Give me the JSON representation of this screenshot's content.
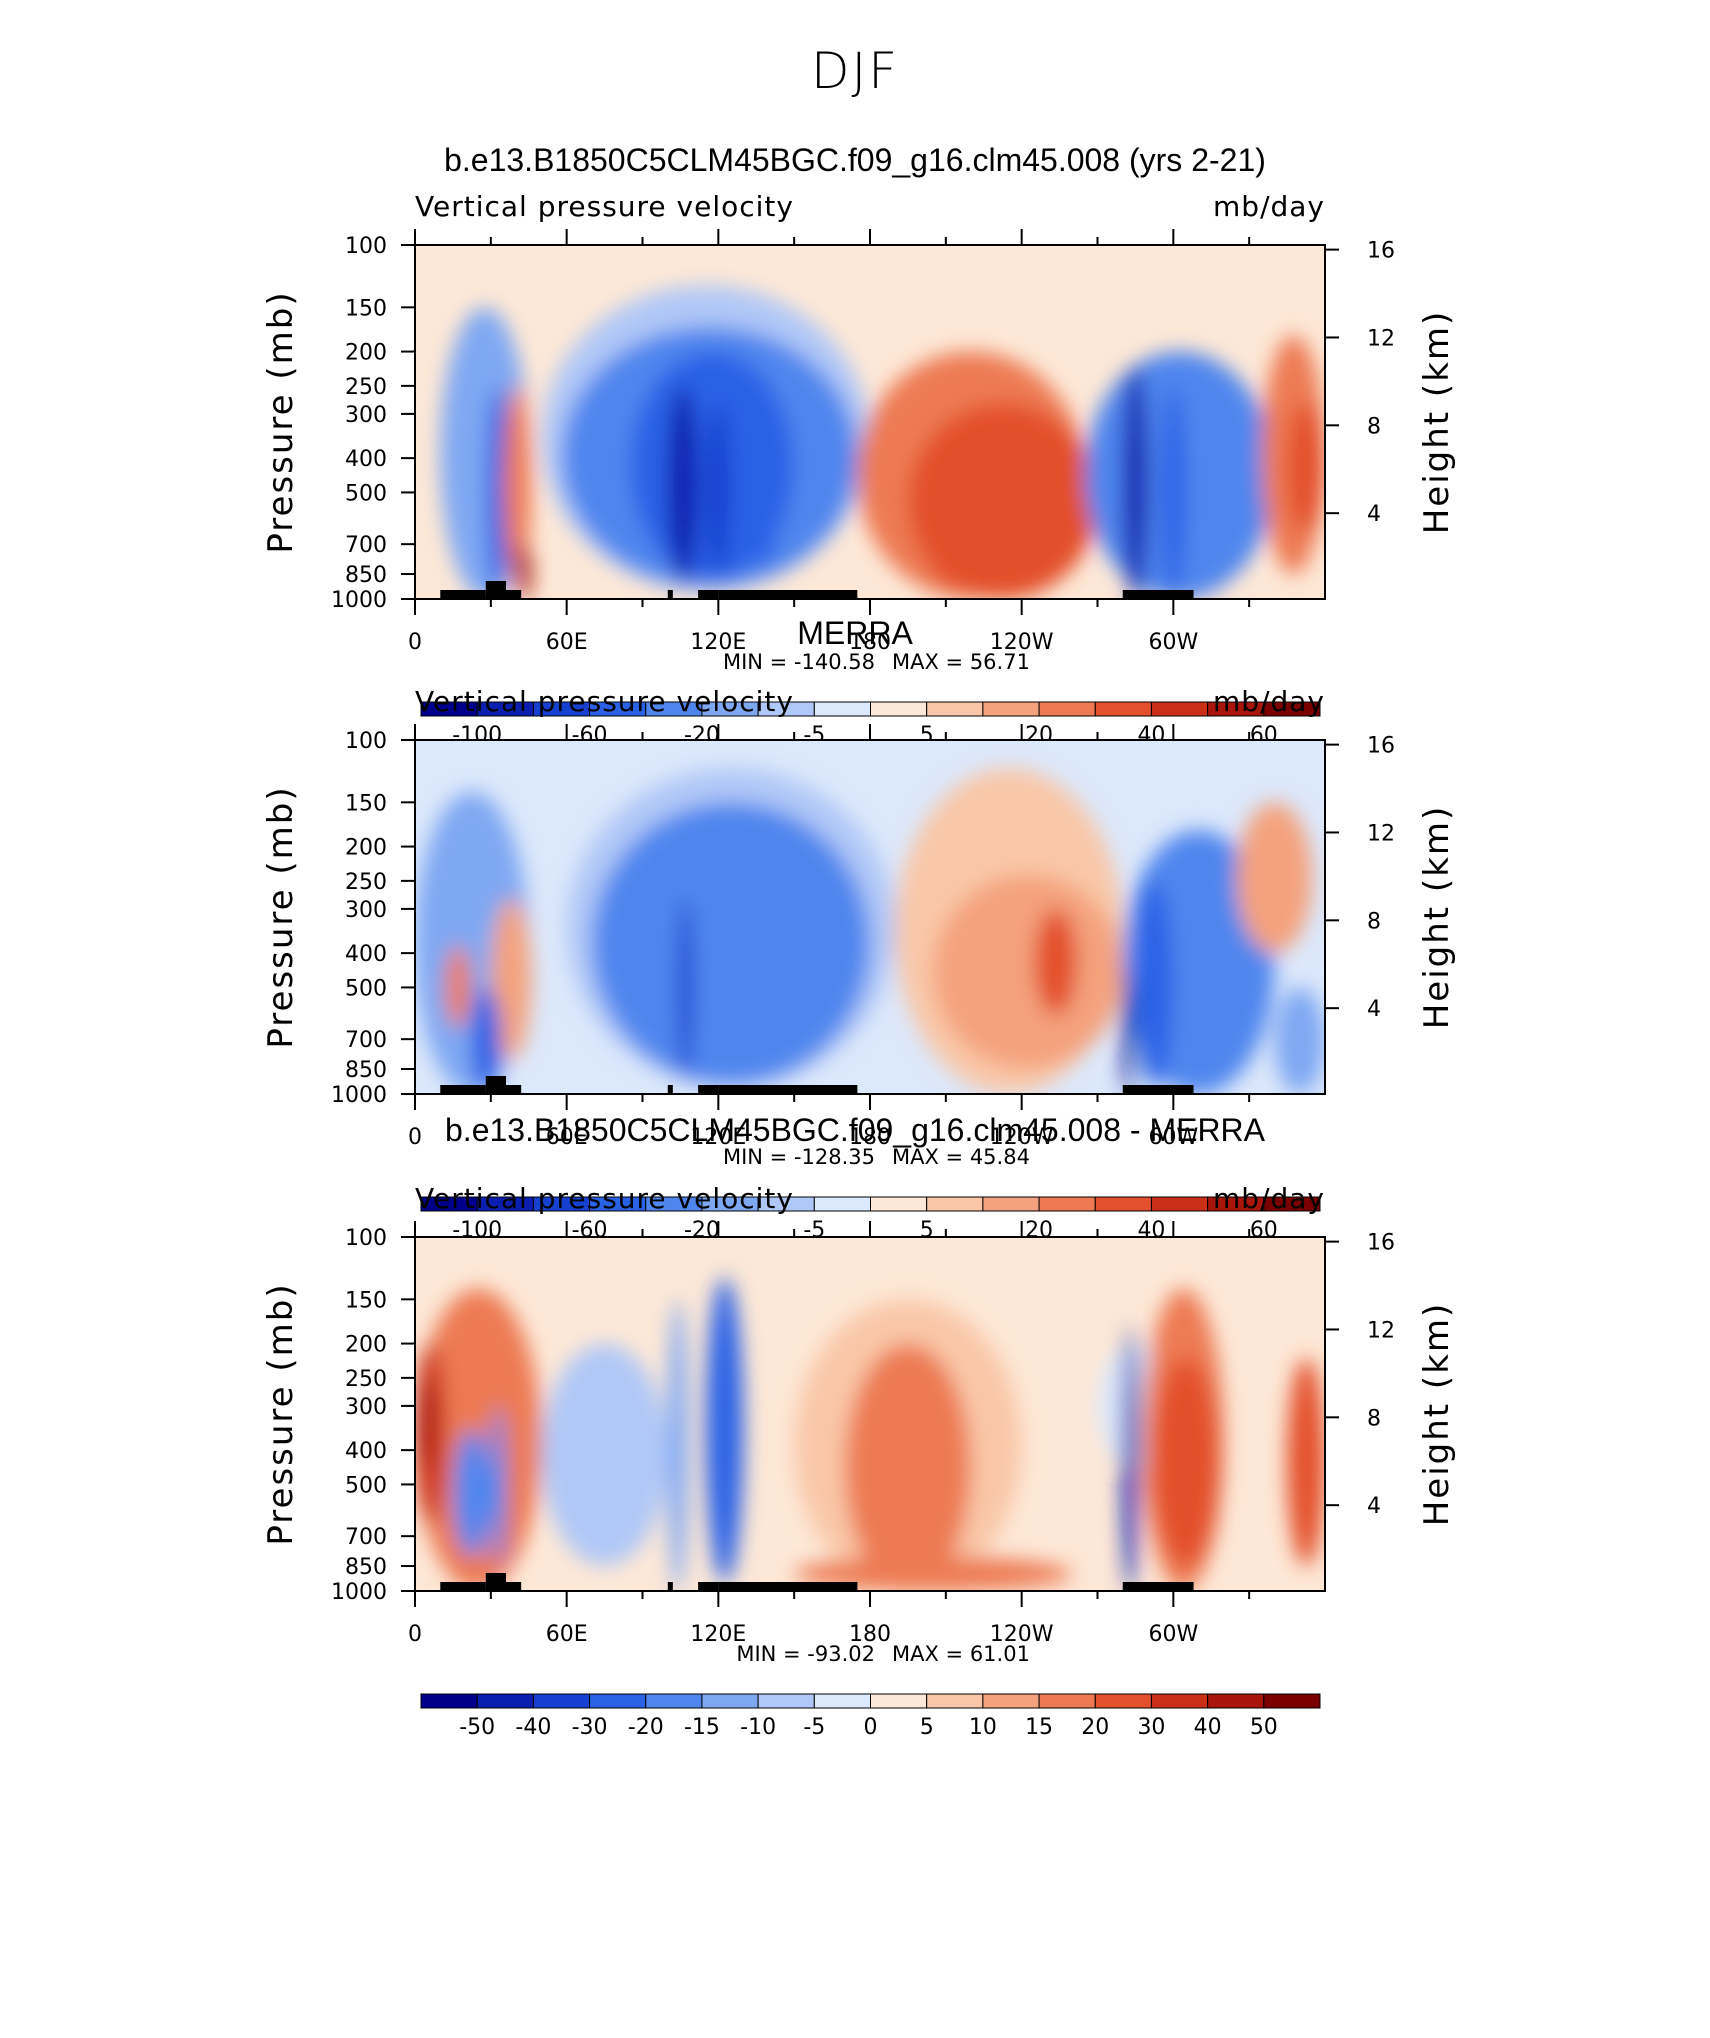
{
  "figure": {
    "title": "DJF"
  },
  "colors": {
    "palette": [
      "#00008b",
      "#0a1fb0",
      "#1540d0",
      "#2a62e6",
      "#4f86ee",
      "#7fa8f3",
      "#b0c8f7",
      "#dce8fb",
      "#fde8d7",
      "#f9c7a8",
      "#f4a27d",
      "#ed7a52",
      "#e3502c",
      "#cc2f17",
      "#a8150a",
      "#7a0000"
    ]
  },
  "chart_data": [
    {
      "type": "heatmap",
      "title": "b.e13.B1850C5CLM45BGC.f09_g16.clm45.008 (yrs 2-21)",
      "variable": "Vertical pressure velocity",
      "units": "mb/day",
      "ylabel": "Pressure (mb)",
      "y2label": "Height (km)",
      "x_ticklabels": [
        "0",
        "60E",
        "120E",
        "180",
        "120W",
        "60W"
      ],
      "y_ticklabels": [
        "100",
        "150",
        "200",
        "250",
        "300",
        "400",
        "500",
        "700",
        "850",
        "1000"
      ],
      "y2_ticklabels": [
        "16",
        "12",
        "8",
        "4"
      ],
      "min_label": "MIN = -140.58",
      "max_label": "MAX = 56.71",
      "colorbar_labels": [
        "-100",
        "-60",
        "-20",
        "-5",
        "5",
        "20",
        "40",
        "60"
      ],
      "colorbar_levels": [
        -100,
        -80,
        -60,
        -40,
        -20,
        -10,
        -5,
        0,
        5,
        10,
        20,
        30,
        40,
        50,
        60
      ],
      "xlim": [
        0,
        360
      ],
      "ylim_mb": [
        1000,
        100
      ],
      "features": [
        {
          "lon": [
            10,
            45
          ],
          "p": [
            150,
            1000
          ],
          "value": -20
        },
        {
          "lon": [
            28,
            37
          ],
          "p": [
            250,
            1000
          ],
          "value": -60
        },
        {
          "lon": [
            35,
            46
          ],
          "p": [
            250,
            900
          ],
          "value": 25
        },
        {
          "lon": [
            40,
            46
          ],
          "p": [
            700,
            1000
          ],
          "value": 55
        },
        {
          "lon": [
            50,
            180
          ],
          "p": [
            130,
            950
          ],
          "value": -8
        },
        {
          "lon": [
            58,
            175
          ],
          "p": [
            170,
            930
          ],
          "value": -22
        },
        {
          "lon": [
            85,
            150
          ],
          "p": [
            200,
            880
          ],
          "value": -45
        },
        {
          "lon": [
            100,
            112
          ],
          "p": [
            250,
            900
          ],
          "value": -90
        },
        {
          "lon": [
            115,
            125
          ],
          "p": [
            280,
            850
          ],
          "value": -70
        },
        {
          "lon": [
            130,
            145
          ],
          "p": [
            300,
            800
          ],
          "value": -60
        },
        {
          "lon": [
            175,
            265
          ],
          "p": [
            200,
            1000
          ],
          "value": 20
        },
        {
          "lon": [
            195,
            270
          ],
          "p": [
            280,
            1000
          ],
          "value": 30
        },
        {
          "lon": [
            200,
            240
          ],
          "p": [
            450,
            950
          ],
          "value": 35
        },
        {
          "lon": [
            265,
            340
          ],
          "p": [
            200,
            1000
          ],
          "value": -30
        },
        {
          "lon": [
            280,
            290
          ],
          "p": [
            220,
            1000
          ],
          "value": -100
        },
        {
          "lon": [
            295,
            305
          ],
          "p": [
            250,
            980
          ],
          "value": -60
        },
        {
          "lon": [
            335,
            360
          ],
          "p": [
            180,
            850
          ],
          "value": 20
        },
        {
          "lon": [
            345,
            360
          ],
          "p": [
            280,
            650
          ],
          "value": 30
        }
      ]
    },
    {
      "type": "heatmap",
      "title": "MERRA",
      "variable": "Vertical pressure velocity",
      "units": "mb/day",
      "ylabel": "Pressure (mb)",
      "y2label": "Height (km)",
      "x_ticklabels": [
        "0",
        "60E",
        "120E",
        "180",
        "120W",
        "60W"
      ],
      "y_ticklabels": [
        "100",
        "150",
        "200",
        "250",
        "300",
        "400",
        "500",
        "700",
        "850",
        "1000"
      ],
      "y2_ticklabels": [
        "16",
        "12",
        "8",
        "4"
      ],
      "min_label": "MIN = -128.35",
      "max_label": "MAX = 45.84",
      "colorbar_labels": [
        "-100",
        "-60",
        "-20",
        "-5",
        "5",
        "20",
        "40",
        "60"
      ],
      "colorbar_levels": [
        -100,
        -80,
        -60,
        -40,
        -20,
        -10,
        -5,
        0,
        5,
        10,
        20,
        30,
        40,
        50,
        60
      ],
      "xlim": [
        0,
        360
      ],
      "ylim_mb": [
        1000,
        100
      ],
      "features": [
        {
          "lon": [
            0,
            45
          ],
          "p": [
            140,
            1000
          ],
          "value": -20
        },
        {
          "lon": [
            12,
            22
          ],
          "p": [
            380,
            650
          ],
          "value": 20
        },
        {
          "lon": [
            30,
            46
          ],
          "p": [
            280,
            800
          ],
          "value": 10
        },
        {
          "lon": [
            22,
            34
          ],
          "p": [
            500,
            1000
          ],
          "value": -60
        },
        {
          "lon": [
            60,
            190
          ],
          "p": [
            120,
            960
          ],
          "value": -8
        },
        {
          "lon": [
            70,
            180
          ],
          "p": [
            150,
            940
          ],
          "value": -22
        },
        {
          "lon": [
            100,
            150
          ],
          "p": [
            220,
            880
          ],
          "value": -40
        },
        {
          "lon": [
            104,
            110
          ],
          "p": [
            280,
            900
          ],
          "value": -80
        },
        {
          "lon": [
            190,
            280
          ],
          "p": [
            120,
            1000
          ],
          "value": 5
        },
        {
          "lon": [
            205,
            280
          ],
          "p": [
            240,
            850
          ],
          "value": 18
        },
        {
          "lon": [
            245,
            262
          ],
          "p": [
            300,
            600
          ],
          "value": 30
        },
        {
          "lon": [
            280,
            340
          ],
          "p": [
            180,
            1000
          ],
          "value": -25
        },
        {
          "lon": [
            285,
            300
          ],
          "p": [
            250,
            950
          ],
          "value": -60
        },
        {
          "lon": [
            280,
            284
          ],
          "p": [
            450,
            1000
          ],
          "value": -110
        },
        {
          "lon": [
            325,
            355
          ],
          "p": [
            150,
            400
          ],
          "value": 15
        },
        {
          "lon": [
            340,
            360
          ],
          "p": [
            500,
            1000
          ],
          "value": -20
        }
      ]
    },
    {
      "type": "heatmap",
      "title": "b.e13.B1850C5CLM45BGC.f09_g16.clm45.008 - MERRA",
      "variable": "Vertical pressure velocity",
      "units": "mb/day",
      "ylabel": "Pressure (mb)",
      "y2label": "Height (km)",
      "x_ticklabels": [
        "0",
        "60E",
        "120E",
        "180",
        "120W",
        "60W"
      ],
      "y_ticklabels": [
        "100",
        "150",
        "200",
        "250",
        "300",
        "400",
        "500",
        "700",
        "850",
        "1000"
      ],
      "y2_ticklabels": [
        "16",
        "12",
        "8",
        "4"
      ],
      "min_label": "MIN = -93.02",
      "max_label": "MAX = 61.01",
      "colorbar_labels": [
        "-50",
        "-40",
        "-30",
        "-20",
        "-15",
        "-10",
        "-5",
        "0",
        "5",
        "10",
        "15",
        "20",
        "30",
        "40",
        "50"
      ],
      "colorbar_levels": [
        -60,
        -50,
        -40,
        -30,
        -20,
        -15,
        -10,
        -5,
        0,
        5,
        10,
        15,
        20,
        30,
        40,
        50,
        60
      ],
      "xlim": [
        0,
        360
      ],
      "ylim_mb": [
        1000,
        100
      ],
      "features": [
        {
          "lon": [
            0,
            50
          ],
          "p": [
            140,
            1000
          ],
          "value": 15
        },
        {
          "lon": [
            0,
            12
          ],
          "p": [
            200,
            650
          ],
          "value": 40
        },
        {
          "lon": [
            2,
            8
          ],
          "p": [
            250,
            450
          ],
          "value": 55
        },
        {
          "lon": [
            15,
            30
          ],
          "p": [
            350,
            800
          ],
          "value": -30
        },
        {
          "lon": [
            30,
            36
          ],
          "p": [
            300,
            850
          ],
          "value": -25
        },
        {
          "lon": [
            50,
            100
          ],
          "p": [
            200,
            850
          ],
          "value": -6
        },
        {
          "lon": [
            100,
            108
          ],
          "p": [
            150,
            1000
          ],
          "value": -15
        },
        {
          "lon": [
            115,
            130
          ],
          "p": [
            130,
            950
          ],
          "value": -35
        },
        {
          "lon": [
            150,
            240
          ],
          "p": [
            150,
            1000
          ],
          "value": 8
        },
        {
          "lon": [
            170,
            220
          ],
          "p": [
            200,
            1000
          ],
          "value": 16
        },
        {
          "lon": [
            150,
            260
          ],
          "p": [
            800,
            1000
          ],
          "value": 18
        },
        {
          "lon": [
            270,
            300
          ],
          "p": [
            200,
            450
          ],
          "value": -5
        },
        {
          "lon": [
            280,
            286
          ],
          "p": [
            180,
            1000
          ],
          "value": -60
        },
        {
          "lon": [
            288,
            320
          ],
          "p": [
            140,
            1000
          ],
          "value": 20
        },
        {
          "lon": [
            292,
            318
          ],
          "p": [
            220,
            850
          ],
          "value": 30
        },
        {
          "lon": [
            345,
            360
          ],
          "p": [
            220,
            850
          ],
          "value": 30
        }
      ]
    }
  ]
}
